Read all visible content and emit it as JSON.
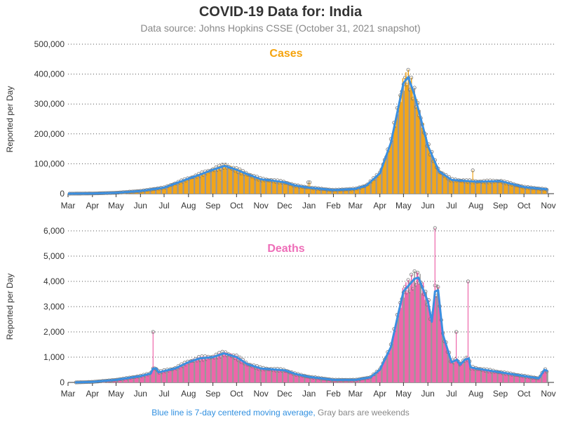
{
  "title": "COVID-19 Data for: India",
  "subtitle": "Data source: Johns Hopkins CSSE (October 31, 2021 snapshot)",
  "footer": {
    "blue_text": "Blue line is 7-day centered moving average,",
    "gray_text": "Gray bars are weekends"
  },
  "colors": {
    "cases_bar": "#F2A51A",
    "deaths_bar": "#EE66AA",
    "moving_average": "#3B8FE0",
    "weekend_bar": "#999999",
    "cases_title": "#F5A30C",
    "deaths_title": "#EE6DB8",
    "footer_blue": "#2F8FE0",
    "footer_gray": "#888888"
  },
  "chart_data": [
    {
      "type": "bar",
      "title": "Cases",
      "ylabel": "Reported per Day",
      "ylim": [
        0,
        500000
      ],
      "yticks": [
        0,
        100000,
        200000,
        300000,
        400000,
        500000
      ],
      "ytick_labels": [
        "0",
        "100,000",
        "200,000",
        "300,000",
        "400,000",
        "500,000"
      ],
      "xtick_labels": [
        "Mar",
        "Apr",
        "May",
        "Jun",
        "Jul",
        "Aug",
        "Sep",
        "Oct",
        "Nov",
        "Dec",
        "Jan",
        "Feb",
        "Mar",
        "Apr",
        "May",
        "Jun",
        "Jul",
        "Aug",
        "Sep",
        "Oct",
        "Nov"
      ],
      "x_unit": "month start (Mar 2020 to Nov 2021)",
      "grid": true,
      "series": [
        {
          "name": "Blue line is 7-day centered moving average",
          "points": [
            [
              "2020-03-01",
              0
            ],
            [
              "2020-04-01",
              700
            ],
            [
              "2020-05-01",
              3000
            ],
            [
              "2020-06-01",
              9000
            ],
            [
              "2020-07-01",
              20000
            ],
            [
              "2020-08-01",
              50000
            ],
            [
              "2020-08-15",
              63000
            ],
            [
              "2020-09-01",
              80000
            ],
            [
              "2020-09-16",
              93000
            ],
            [
              "2020-10-01",
              80000
            ],
            [
              "2020-10-15",
              65000
            ],
            [
              "2020-11-01",
              48000
            ],
            [
              "2020-11-15",
              44000
            ],
            [
              "2020-12-01",
              38000
            ],
            [
              "2020-12-15",
              27000
            ],
            [
              "2021-01-01",
              20000
            ],
            [
              "2021-02-01",
              12000
            ],
            [
              "2021-03-01",
              16000
            ],
            [
              "2021-03-15",
              27000
            ],
            [
              "2021-04-01",
              68000
            ],
            [
              "2021-04-15",
              170000
            ],
            [
              "2021-05-01",
              370000
            ],
            [
              "2021-05-07",
              390000
            ],
            [
              "2021-05-15",
              330000
            ],
            [
              "2021-06-01",
              160000
            ],
            [
              "2021-06-15",
              75000
            ],
            [
              "2021-07-01",
              46000
            ],
            [
              "2021-08-01",
              40000
            ],
            [
              "2021-09-01",
              42000
            ],
            [
              "2021-10-01",
              22000
            ],
            [
              "2021-10-31",
              14000
            ]
          ]
        }
      ],
      "annotations": [
        {
          "date": "2021-07-28",
          "value": 78000
        },
        {
          "date": "2020-12-31",
          "value": 38000
        },
        {
          "date": "2021-01-02",
          "value": 38000
        }
      ]
    },
    {
      "type": "bar",
      "title": "Deaths",
      "ylabel": "Reported per Day",
      "ylim": [
        0,
        6000
      ],
      "yticks": [
        0,
        1000,
        2000,
        3000,
        4000,
        5000,
        6000
      ],
      "ytick_labels": [
        "0",
        "1,000",
        "2,000",
        "3,000",
        "4,000",
        "5,000",
        "6,000"
      ],
      "xtick_labels": [
        "Mar",
        "Apr",
        "May",
        "Jun",
        "Jul",
        "Aug",
        "Sep",
        "Oct",
        "Nov",
        "Dec",
        "Jan",
        "Feb",
        "Mar",
        "Apr",
        "May",
        "Jun",
        "Jul",
        "Aug",
        "Sep",
        "Oct",
        "Nov"
      ],
      "x_unit": "month start (Mar 2020 to Nov 2021)",
      "grid": true,
      "series": [
        {
          "name": "Blue line is 7-day centered moving average",
          "points": [
            [
              "2020-03-10",
              0
            ],
            [
              "2020-04-01",
              20
            ],
            [
              "2020-05-01",
              100
            ],
            [
              "2020-06-01",
              250
            ],
            [
              "2020-06-14",
              350
            ],
            [
              "2020-06-17",
              550
            ],
            [
              "2020-06-21",
              550
            ],
            [
              "2020-06-24",
              400
            ],
            [
              "2020-07-01",
              450
            ],
            [
              "2020-07-15",
              550
            ],
            [
              "2020-08-01",
              800
            ],
            [
              "2020-08-15",
              950
            ],
            [
              "2020-09-01",
              1000
            ],
            [
              "2020-09-15",
              1150
            ],
            [
              "2020-10-01",
              1000
            ],
            [
              "2020-10-15",
              720
            ],
            [
              "2020-11-01",
              550
            ],
            [
              "2020-12-01",
              480
            ],
            [
              "2020-12-15",
              330
            ],
            [
              "2021-01-01",
              220
            ],
            [
              "2021-02-01",
              100
            ],
            [
              "2021-03-01",
              100
            ],
            [
              "2021-03-20",
              200
            ],
            [
              "2021-04-01",
              500
            ],
            [
              "2021-04-15",
              1400
            ],
            [
              "2021-04-25",
              2800
            ],
            [
              "2021-05-01",
              3600
            ],
            [
              "2021-05-15",
              4100
            ],
            [
              "2021-05-20",
              4150
            ],
            [
              "2021-06-01",
              3200
            ],
            [
              "2021-06-06",
              2400
            ],
            [
              "2021-06-10",
              3600
            ],
            [
              "2021-06-14",
              3650
            ],
            [
              "2021-06-20",
              1900
            ],
            [
              "2021-07-01",
              800
            ],
            [
              "2021-07-08",
              900
            ],
            [
              "2021-07-12",
              700
            ],
            [
              "2021-07-18",
              900
            ],
            [
              "2021-07-23",
              950
            ],
            [
              "2021-07-25",
              600
            ],
            [
              "2021-08-01",
              550
            ],
            [
              "2021-09-01",
              400
            ],
            [
              "2021-10-01",
              250
            ],
            [
              "2021-10-20",
              160
            ],
            [
              "2021-10-27",
              500
            ],
            [
              "2021-10-31",
              450
            ]
          ]
        }
      ],
      "annotations": [
        {
          "date": "2020-06-17",
          "value": 2000
        },
        {
          "date": "2021-06-10",
          "value": 6150
        },
        {
          "date": "2021-07-22",
          "value": 4000
        },
        {
          "date": "2021-07-07",
          "value": 2000
        }
      ]
    }
  ]
}
